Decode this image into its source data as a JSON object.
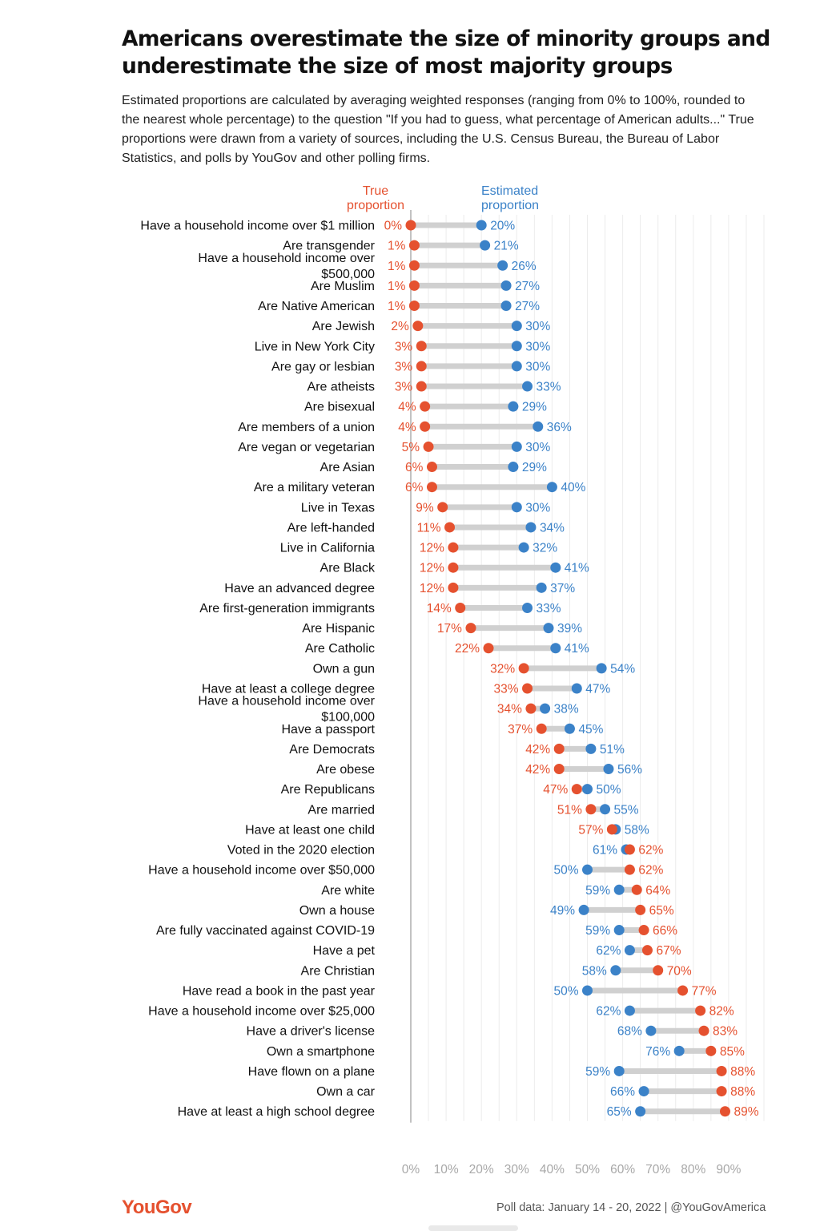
{
  "title": "Americans overestimate the size of minority groups and underestimate the size of most majority groups",
  "subtitle": "Estimated proportions are calculated by averaging weighted responses (ranging from 0% to 100%, rounded to the nearest whole percentage) to the question \"If you had to guess, what percentage of American adults...\" True proportions were drawn from a variety of sources, including the U.S. Census Bureau, the Bureau of Labor Statistics, and polls by YouGov and other polling firms.",
  "legend": {
    "true_label_1": "True",
    "true_label_2": "proportion",
    "est_label_1": "Estimated",
    "est_label_2": "proportion"
  },
  "colors": {
    "true": "#e5512f",
    "estimated": "#3b82c8",
    "connector": "#d0d0d0"
  },
  "footer": {
    "logo": "YouGov",
    "source": "Poll data: January 14 - 20, 2022 | @YouGovAmerica"
  },
  "chart_data": {
    "type": "dumbbell",
    "title": "Americans overestimate the size of minority groups and underestimate the size of most majority groups",
    "series": [
      {
        "name": "True proportion",
        "key": "true"
      },
      {
        "name": "Estimated proportion",
        "key": "est"
      }
    ],
    "xlim": [
      0,
      100
    ],
    "x_ticks": [
      "0%",
      "10%",
      "20%",
      "30%",
      "40%",
      "50%",
      "60%",
      "70%",
      "80%",
      "90%"
    ],
    "grid": true,
    "rows": [
      {
        "label": [
          "Have a household income over $1 million"
        ],
        "true": 0,
        "est": 20
      },
      {
        "label": [
          "Are transgender"
        ],
        "true": 1,
        "est": 21
      },
      {
        "label": [
          "Have a household income over",
          "$500,000"
        ],
        "true": 1,
        "est": 26
      },
      {
        "label": [
          "Are Muslim"
        ],
        "true": 1,
        "est": 27
      },
      {
        "label": [
          "Are Native American"
        ],
        "true": 1,
        "est": 27
      },
      {
        "label": [
          "Are Jewish"
        ],
        "true": 2,
        "est": 30
      },
      {
        "label": [
          "Live in New York City"
        ],
        "true": 3,
        "est": 30
      },
      {
        "label": [
          "Are gay or lesbian"
        ],
        "true": 3,
        "est": 30
      },
      {
        "label": [
          "Are atheists"
        ],
        "true": 3,
        "est": 33
      },
      {
        "label": [
          "Are bisexual"
        ],
        "true": 4,
        "est": 29
      },
      {
        "label": [
          "Are members of a union"
        ],
        "true": 4,
        "est": 36
      },
      {
        "label": [
          "Are vegan or vegetarian"
        ],
        "true": 5,
        "est": 30
      },
      {
        "label": [
          "Are Asian"
        ],
        "true": 6,
        "est": 29
      },
      {
        "label": [
          "Are a military veteran"
        ],
        "true": 6,
        "est": 40
      },
      {
        "label": [
          "Live in Texas"
        ],
        "true": 9,
        "est": 30
      },
      {
        "label": [
          "Are left-handed"
        ],
        "true": 11,
        "est": 34
      },
      {
        "label": [
          "Live in California"
        ],
        "true": 12,
        "est": 32
      },
      {
        "label": [
          "Are Black"
        ],
        "true": 12,
        "est": 41
      },
      {
        "label": [
          "Have an advanced degree"
        ],
        "true": 12,
        "est": 37
      },
      {
        "label": [
          "Are first-generation immigrants"
        ],
        "true": 14,
        "est": 33
      },
      {
        "label": [
          "Are Hispanic"
        ],
        "true": 17,
        "est": 39
      },
      {
        "label": [
          "Are Catholic"
        ],
        "true": 22,
        "est": 41
      },
      {
        "label": [
          "Own a gun"
        ],
        "true": 32,
        "est": 54
      },
      {
        "label": [
          "Have at least a college degree"
        ],
        "true": 33,
        "est": 47
      },
      {
        "label": [
          "Have a household income over",
          "$100,000"
        ],
        "true": 34,
        "est": 38
      },
      {
        "label": [
          "Have a passport"
        ],
        "true": 37,
        "est": 45
      },
      {
        "label": [
          "Are Democrats"
        ],
        "true": 42,
        "est": 51
      },
      {
        "label": [
          "Are obese"
        ],
        "true": 42,
        "est": 56
      },
      {
        "label": [
          "Are Republicans"
        ],
        "true": 47,
        "est": 50
      },
      {
        "label": [
          "Are married"
        ],
        "true": 51,
        "est": 55
      },
      {
        "label": [
          "Have at least one child"
        ],
        "true": 57,
        "est": 58
      },
      {
        "label": [
          "Voted in the 2020 election"
        ],
        "true": 62,
        "est": 61
      },
      {
        "label": [
          "Have a household income over $50,000"
        ],
        "true": 62,
        "est": 50
      },
      {
        "label": [
          "Are white"
        ],
        "true": 64,
        "est": 59
      },
      {
        "label": [
          "Own a house"
        ],
        "true": 65,
        "est": 49
      },
      {
        "label": [
          "Are fully vaccinated against COVID-19"
        ],
        "true": 66,
        "est": 59
      },
      {
        "label": [
          "Have a pet"
        ],
        "true": 67,
        "est": 62
      },
      {
        "label": [
          "Are Christian"
        ],
        "true": 70,
        "est": 58
      },
      {
        "label": [
          "Have read a book in the past year"
        ],
        "true": 77,
        "est": 50
      },
      {
        "label": [
          "Have a household income over $25,000"
        ],
        "true": 82,
        "est": 62
      },
      {
        "label": [
          "Have a driver's license"
        ],
        "true": 83,
        "est": 68
      },
      {
        "label": [
          "Own a smartphone"
        ],
        "true": 85,
        "est": 76
      },
      {
        "label": [
          "Have flown on a plane"
        ],
        "true": 88,
        "est": 59
      },
      {
        "label": [
          "Own a car"
        ],
        "true": 88,
        "est": 66
      },
      {
        "label": [
          "Have at least a high school degree"
        ],
        "true": 89,
        "est": 65
      }
    ]
  }
}
